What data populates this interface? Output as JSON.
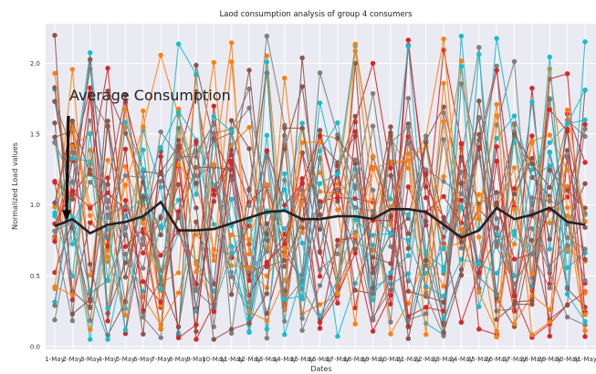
{
  "chart_data": {
    "type": "line",
    "title": "Laod consumption analysis of group 4 consumers",
    "xlabel": "Dates",
    "ylabel": "Normalized Load values",
    "ylim": [
      -0.02,
      2.28
    ],
    "yticks": [
      0.0,
      0.5,
      1.0,
      1.5,
      2.0
    ],
    "grid": true,
    "background": "#eaeaf2",
    "categories": [
      "1-May",
      "2-May",
      "3-May",
      "4-May",
      "5-May",
      "6-May",
      "7-May",
      "8-May",
      "9-May",
      "10-May",
      "11-May",
      "12-May",
      "13-May",
      "14-May",
      "15-May",
      "16-May",
      "17-May",
      "18-May",
      "19-May",
      "20-May",
      "21-May",
      "22-May",
      "23-May",
      "24-May",
      "25-May",
      "26-May",
      "27-May",
      "28-May",
      "29-May",
      "30-May",
      "31-May"
    ],
    "annotation": {
      "text": "Average Consumption",
      "x": "1-May",
      "y": 0.86
    },
    "average_series": {
      "color": "#222222",
      "values": [
        0.85,
        0.9,
        0.8,
        0.86,
        0.88,
        0.92,
        1.02,
        0.82,
        0.82,
        0.83,
        0.87,
        0.91,
        0.95,
        0.96,
        0.9,
        0.9,
        0.92,
        0.92,
        0.9,
        0.97,
        0.97,
        0.95,
        0.86,
        0.77,
        0.82,
        0.98,
        0.9,
        0.93,
        0.98,
        0.88,
        0.86
      ]
    },
    "consumer_colors": [
      "#d62728",
      "#ff7f0e",
      "#17becf",
      "#7f7f7f",
      "#8c564b"
    ],
    "consumer_series_count": 30
  }
}
